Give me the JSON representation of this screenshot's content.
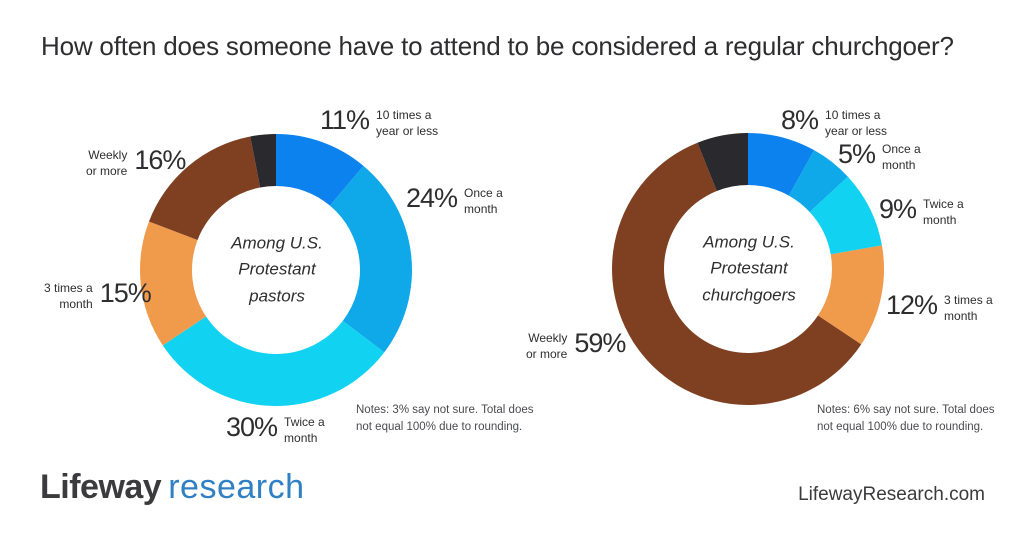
{
  "title": "How often does someone have to attend to be considered a regular churchgoer?",
  "palette": {
    "blue": "#0B82EE",
    "light_blue": "#0FA8E9",
    "cyan": "#12D2F1",
    "orange": "#F09A4C",
    "brown": "#7F4021",
    "black": "#2A292E",
    "text": "#2E2E30",
    "logo_blue": "#3080C4"
  },
  "chart_data": [
    {
      "type": "pie",
      "variant": "donut",
      "group_label": "Among U.S. Protestant pastors",
      "center_lines": [
        "Among U.S.",
        "Protestant",
        "pastors"
      ],
      "note": "Notes: 3% say not sure. Total does not equal 100% due to rounding.",
      "note_lines": [
        "Notes: 3% say not sure. Total does",
        "not equal 100% due to rounding."
      ],
      "segments": [
        {
          "key": "10-times-a-year-or-less",
          "label": "10 times a year or less",
          "label_lines": [
            "10 times a",
            "year or less"
          ],
          "value": 11,
          "pct": "11%",
          "color": "#0B82EE"
        },
        {
          "key": "once-a-month",
          "label": "Once a month",
          "label_lines": [
            "Once a",
            "month"
          ],
          "value": 24,
          "pct": "24%",
          "color": "#0FA8E9"
        },
        {
          "key": "twice-a-month",
          "label": "Twice a month",
          "label_lines": [
            "Twice a",
            "month"
          ],
          "value": 30,
          "pct": "30%",
          "color": "#12D2F1"
        },
        {
          "key": "3-times-a-month",
          "label": "3 times a month",
          "label_lines": [
            "3 times a",
            "month"
          ],
          "value": 15,
          "pct": "15%",
          "color": "#F09A4C"
        },
        {
          "key": "weekly-or-more",
          "label": "Weekly or more",
          "label_lines": [
            "Weekly",
            "or more"
          ],
          "value": 16,
          "pct": "16%",
          "color": "#7F4021"
        },
        {
          "key": "not-sure",
          "label": "Not sure",
          "value": 3,
          "pct": "3%",
          "color": "#2A292E",
          "unlabeled": true
        }
      ]
    },
    {
      "type": "pie",
      "variant": "donut",
      "group_label": "Among U.S. Protestant churchgoers",
      "center_lines": [
        "Among U.S.",
        "Protestant",
        "churchgoers"
      ],
      "note": "Notes: 6% say not sure. Total does not equal 100% due to rounding.",
      "note_lines": [
        "Notes: 6% say not sure. Total does",
        "not equal 100% due to rounding."
      ],
      "segments": [
        {
          "key": "10-times-a-year-or-less",
          "label": "10 times a year or less",
          "label_lines": [
            "10 times a",
            "year or less"
          ],
          "value": 8,
          "pct": "8%",
          "color": "#0B82EE"
        },
        {
          "key": "once-a-month",
          "label": "Once a month",
          "label_lines": [
            "Once a",
            "month"
          ],
          "value": 5,
          "pct": "5%",
          "color": "#0FA8E9"
        },
        {
          "key": "twice-a-month",
          "label": "Twice a month",
          "label_lines": [
            "Twice a",
            "month"
          ],
          "value": 9,
          "pct": "9%",
          "color": "#12D2F1"
        },
        {
          "key": "3-times-a-month",
          "label": "3 times a month",
          "label_lines": [
            "3 times a",
            "month"
          ],
          "value": 12,
          "pct": "12%",
          "color": "#F09A4C"
        },
        {
          "key": "weekly-or-more",
          "label": "Weekly or more",
          "label_lines": [
            "Weekly",
            "or more"
          ],
          "value": 59,
          "pct": "59%",
          "color": "#7F4021"
        },
        {
          "key": "not-sure",
          "label": "Not sure",
          "value": 6,
          "pct": "6%",
          "color": "#2A292E",
          "unlabeled": true
        }
      ]
    }
  ],
  "footer": {
    "logo_primary": "Lifeway",
    "logo_secondary": "research",
    "website": "LifewayResearch.com"
  }
}
